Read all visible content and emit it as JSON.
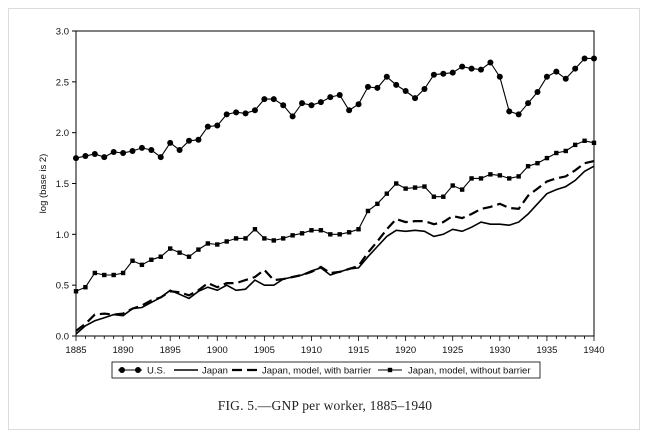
{
  "figure": {
    "caption": "FIG. 5.—GNP per worker, 1885–1940"
  },
  "chart_data": {
    "type": "line",
    "xlim": [
      1885,
      1940
    ],
    "ylim": [
      0.0,
      3.0
    ],
    "ylabel": "log (base is 2)",
    "xlabel": "",
    "x_ticks": [
      1885,
      1890,
      1895,
      1900,
      1905,
      1910,
      1915,
      1920,
      1925,
      1930,
      1935,
      1940
    ],
    "y_ticks": [
      "0.0",
      "0.5",
      "1.0",
      "1.5",
      "2.0",
      "2.5",
      "3.0"
    ],
    "grid": false,
    "legend_position": "bottom",
    "x": [
      1885,
      1886,
      1887,
      1888,
      1889,
      1890,
      1891,
      1892,
      1893,
      1894,
      1895,
      1896,
      1897,
      1898,
      1899,
      1900,
      1901,
      1902,
      1903,
      1904,
      1905,
      1906,
      1907,
      1908,
      1909,
      1910,
      1911,
      1912,
      1913,
      1914,
      1915,
      1916,
      1917,
      1918,
      1919,
      1920,
      1921,
      1922,
      1923,
      1924,
      1925,
      1926,
      1927,
      1928,
      1929,
      1930,
      1931,
      1932,
      1933,
      1934,
      1935,
      1936,
      1937,
      1938,
      1939,
      1940
    ],
    "series": [
      {
        "name": "U.S.",
        "style": "solid-circle",
        "color": "#000000",
        "values": [
          1.75,
          1.77,
          1.79,
          1.76,
          1.81,
          1.8,
          1.82,
          1.85,
          1.83,
          1.76,
          1.9,
          1.83,
          1.92,
          1.93,
          2.06,
          2.07,
          2.18,
          2.2,
          2.19,
          2.22,
          2.33,
          2.33,
          2.27,
          2.16,
          2.29,
          2.27,
          2.3,
          2.35,
          2.37,
          2.22,
          2.28,
          2.45,
          2.44,
          2.55,
          2.47,
          2.41,
          2.34,
          2.43,
          2.57,
          2.58,
          2.59,
          2.65,
          2.63,
          2.62,
          2.69,
          2.55,
          2.21,
          2.18,
          2.29,
          2.4,
          2.55,
          2.6,
          2.53,
          2.63,
          2.73,
          2.73
        ]
      },
      {
        "name": "Japan",
        "style": "solid-thin",
        "color": "#000000",
        "values": [
          0.02,
          0.1,
          0.15,
          0.18,
          0.21,
          0.2,
          0.27,
          0.28,
          0.33,
          0.38,
          0.45,
          0.41,
          0.37,
          0.44,
          0.48,
          0.45,
          0.5,
          0.45,
          0.46,
          0.55,
          0.5,
          0.5,
          0.56,
          0.58,
          0.6,
          0.64,
          0.67,
          0.6,
          0.63,
          0.66,
          0.67,
          0.78,
          0.88,
          0.98,
          1.04,
          1.03,
          1.04,
          1.03,
          0.98,
          1.0,
          1.05,
          1.03,
          1.07,
          1.12,
          1.1,
          1.1,
          1.09,
          1.12,
          1.2,
          1.3,
          1.4,
          1.44,
          1.47,
          1.53,
          1.62,
          1.67
        ]
      },
      {
        "name": "Japan, model, with barrier",
        "style": "dashed-thick",
        "color": "#000000",
        "values": [
          0.05,
          0.12,
          0.21,
          0.22,
          0.21,
          0.22,
          0.27,
          0.3,
          0.35,
          0.38,
          0.44,
          0.43,
          0.4,
          0.45,
          0.52,
          0.48,
          0.52,
          0.52,
          0.55,
          0.58,
          0.65,
          0.55,
          0.56,
          0.58,
          0.6,
          0.63,
          0.68,
          0.62,
          0.63,
          0.66,
          0.69,
          0.82,
          0.93,
          1.05,
          1.15,
          1.12,
          1.13,
          1.13,
          1.1,
          1.12,
          1.18,
          1.16,
          1.2,
          1.25,
          1.27,
          1.3,
          1.26,
          1.25,
          1.38,
          1.45,
          1.52,
          1.55,
          1.57,
          1.63,
          1.7,
          1.72
        ]
      },
      {
        "name": "Japan, model, without barrier",
        "style": "solid-square",
        "color": "#000000",
        "values": [
          0.44,
          0.48,
          0.62,
          0.6,
          0.6,
          0.62,
          0.74,
          0.7,
          0.75,
          0.78,
          0.86,
          0.82,
          0.78,
          0.85,
          0.91,
          0.9,
          0.93,
          0.96,
          0.96,
          1.05,
          0.96,
          0.94,
          0.96,
          0.99,
          1.01,
          1.04,
          1.04,
          1.0,
          1.0,
          1.02,
          1.05,
          1.23,
          1.3,
          1.4,
          1.5,
          1.45,
          1.46,
          1.47,
          1.37,
          1.37,
          1.48,
          1.44,
          1.55,
          1.55,
          1.59,
          1.58,
          1.55,
          1.57,
          1.67,
          1.7,
          1.75,
          1.8,
          1.82,
          1.88,
          1.92,
          1.9
        ]
      }
    ]
  }
}
